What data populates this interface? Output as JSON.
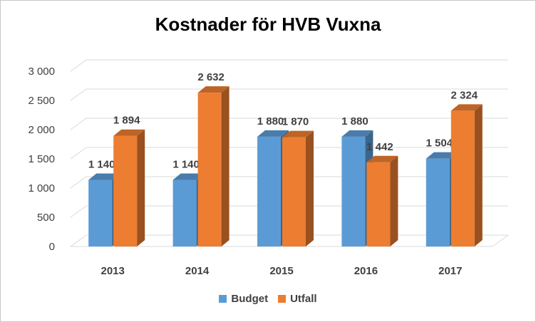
{
  "chart_data": {
    "type": "bar",
    "title": "Kostnader för HVB Vuxna",
    "categories": [
      "2013",
      "2014",
      "2015",
      "2016",
      "2017"
    ],
    "series": [
      {
        "name": "Budget",
        "values": [
          1140,
          1140,
          1880,
          1880,
          1504
        ],
        "labels": [
          "1 140",
          "1 140",
          "1 880",
          "1 880",
          "1 504"
        ],
        "color": "#5B9BD5"
      },
      {
        "name": "Utfall",
        "values": [
          1894,
          2632,
          1870,
          1442,
          2324
        ],
        "labels": [
          "1 894",
          "2 632",
          "1 870",
          "1 442",
          "2 324"
        ],
        "color": "#ED7D31"
      }
    ],
    "ylim": [
      0,
      3000
    ],
    "yticks": [
      0,
      500,
      1000,
      1500,
      2000,
      2500,
      3000
    ],
    "ytick_labels": [
      "0",
      "500",
      "1 000",
      "1 500",
      "2 000",
      "2 500",
      "3 000"
    ],
    "grid": true,
    "legend_position": "bottom",
    "style": "3d-clustered-column"
  }
}
